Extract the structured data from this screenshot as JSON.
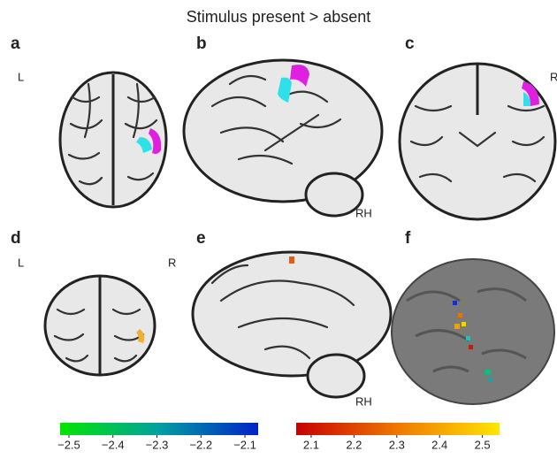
{
  "title": "Stimulus present > absent",
  "panels": [
    {
      "label": "a",
      "texts": [
        "L"
      ]
    },
    {
      "label": "b",
      "texts": [
        "RH"
      ]
    },
    {
      "label": "c",
      "texts": [
        "R"
      ]
    },
    {
      "label": "d",
      "texts": [
        "L",
        "R"
      ]
    },
    {
      "label": "e",
      "texts": [
        "RH"
      ]
    },
    {
      "label": "f",
      "texts": []
    }
  ],
  "colorbars": [
    {
      "lim": [
        -2.52,
        -2.07
      ],
      "colors": [
        "#00e600",
        "#00a0a0",
        "#0022c8"
      ],
      "ticks": [
        {
          "value": -2.5,
          "label": "−2.5"
        },
        {
          "value": -2.4,
          "label": "−2.4"
        },
        {
          "value": -2.3,
          "label": "−2.3"
        },
        {
          "value": -2.2,
          "label": "−2.2"
        },
        {
          "value": -2.1,
          "label": "−2.1"
        }
      ]
    },
    {
      "lim": [
        2.065,
        2.54
      ],
      "colors": [
        "#c80000",
        "#f07800",
        "#ffe600"
      ],
      "ticks": [
        2.1,
        2.2,
        2.3,
        2.4,
        2.5
      ]
    }
  ]
}
